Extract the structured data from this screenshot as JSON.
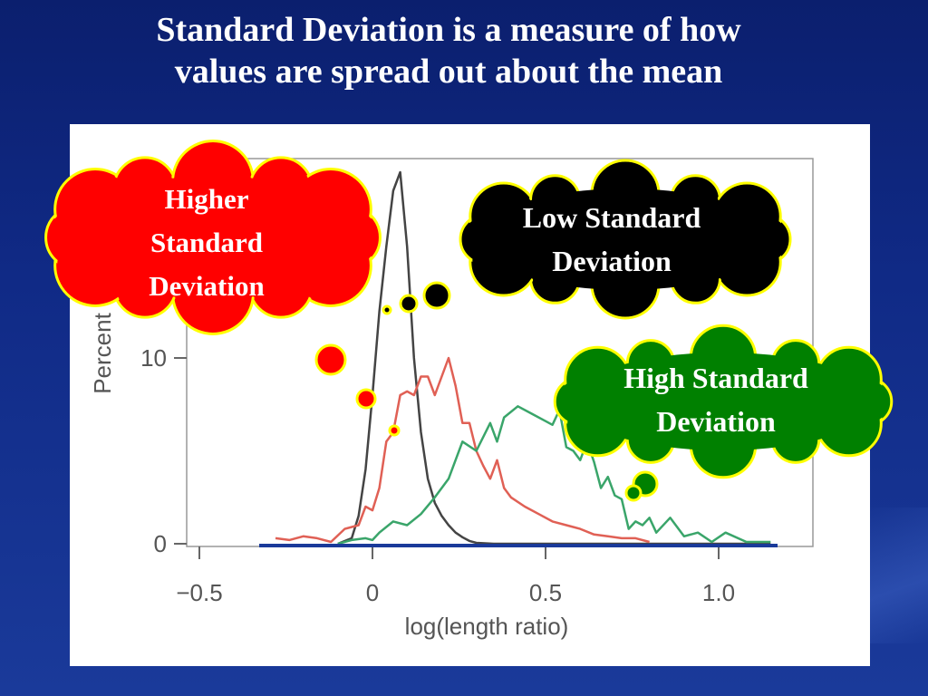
{
  "slide": {
    "title_line1": "Standard Deviation is a measure of how",
    "title_line2": "values are spread out about the mean"
  },
  "callouts": {
    "higher": {
      "text_line1": "Higher",
      "text_line2": "Standard",
      "text_line3": "Deviation",
      "fill": "#ff0000",
      "text_color": "#ffffff"
    },
    "low": {
      "text_line1": "Low Standard",
      "text_line2": "Deviation",
      "fill": "#000000",
      "text_color": "#ffffff"
    },
    "high": {
      "text_line1": "High Standard",
      "text_line2": "Deviation",
      "fill": "#008000",
      "text_color": "#ffffff"
    },
    "outline": "#ffff00"
  },
  "chart_data": {
    "type": "line",
    "xlabel": "log(length ratio)",
    "ylabel": "Percent",
    "xlim": [
      -0.55,
      1.15
    ],
    "ylim": [
      -0.5,
      21
    ],
    "x_ticks": [
      -0.5,
      0,
      0.5,
      1.0
    ],
    "x_tick_labels": [
      "−0.5",
      "0",
      "0.5",
      "1.0"
    ],
    "y_ticks": [
      0,
      10
    ],
    "y_tick_labels": [
      "0",
      "10"
    ],
    "baseline_color": "#1a3a9a",
    "series": [
      {
        "color": "#444444",
        "x": [
          -0.1,
          -0.06,
          -0.04,
          -0.02,
          0.0,
          0.02,
          0.04,
          0.06,
          0.08,
          0.1,
          0.12,
          0.14,
          0.16,
          0.18,
          0.2,
          0.22,
          0.24,
          0.26,
          0.28,
          0.3,
          0.35,
          0.4,
          0.5,
          0.6,
          0.8,
          1.0,
          1.15
        ],
        "y": [
          0,
          0.3,
          1.5,
          4,
          8,
          12.5,
          16,
          19,
          20,
          16,
          10,
          6,
          3.5,
          2.2,
          1.5,
          1.0,
          0.6,
          0.35,
          0.15,
          0.05,
          0,
          0,
          0,
          0,
          0,
          0,
          0
        ]
      },
      {
        "color": "#e06055",
        "x": [
          -0.28,
          -0.24,
          -0.2,
          -0.16,
          -0.12,
          -0.08,
          -0.04,
          -0.02,
          0.0,
          0.02,
          0.04,
          0.06,
          0.08,
          0.1,
          0.12,
          0.14,
          0.16,
          0.18,
          0.2,
          0.22,
          0.24,
          0.26,
          0.28,
          0.3,
          0.32,
          0.34,
          0.36,
          0.38,
          0.4,
          0.44,
          0.48,
          0.52,
          0.56,
          0.6,
          0.64,
          0.68,
          0.72,
          0.76,
          0.8
        ],
        "y": [
          0.3,
          0.2,
          0.4,
          0.3,
          0.1,
          0.8,
          1.0,
          2.0,
          1.8,
          3.0,
          5.5,
          6.0,
          8.0,
          8.2,
          8.0,
          9.0,
          9.0,
          8.0,
          9.0,
          10.0,
          8.5,
          6.5,
          6.5,
          5.0,
          4.2,
          3.5,
          4.5,
          3.0,
          2.5,
          2.0,
          1.6,
          1.2,
          1.0,
          0.8,
          0.5,
          0.4,
          0.3,
          0.3,
          0.1
        ]
      },
      {
        "color": "#3aa56a",
        "x": [
          -0.1,
          -0.06,
          -0.02,
          0.0,
          0.02,
          0.06,
          0.1,
          0.14,
          0.18,
          0.22,
          0.26,
          0.3,
          0.34,
          0.36,
          0.38,
          0.42,
          0.46,
          0.5,
          0.52,
          0.54,
          0.56,
          0.58,
          0.6,
          0.62,
          0.64,
          0.66,
          0.68,
          0.7,
          0.72,
          0.74,
          0.76,
          0.78,
          0.8,
          0.82,
          0.86,
          0.9,
          0.94,
          0.98,
          1.02,
          1.08,
          1.15
        ],
        "y": [
          0,
          0.2,
          0.3,
          0.2,
          0.6,
          1.2,
          1.0,
          1.6,
          2.5,
          3.5,
          5.5,
          5.0,
          6.5,
          5.5,
          6.8,
          7.4,
          7.0,
          6.6,
          6.4,
          7.2,
          5.2,
          5.0,
          4.5,
          5.5,
          4.4,
          3.0,
          3.6,
          2.6,
          2.4,
          0.8,
          1.2,
          1.0,
          1.4,
          0.6,
          1.4,
          0.4,
          0.6,
          0.1,
          0.6,
          0.1,
          0.1
        ]
      }
    ]
  }
}
